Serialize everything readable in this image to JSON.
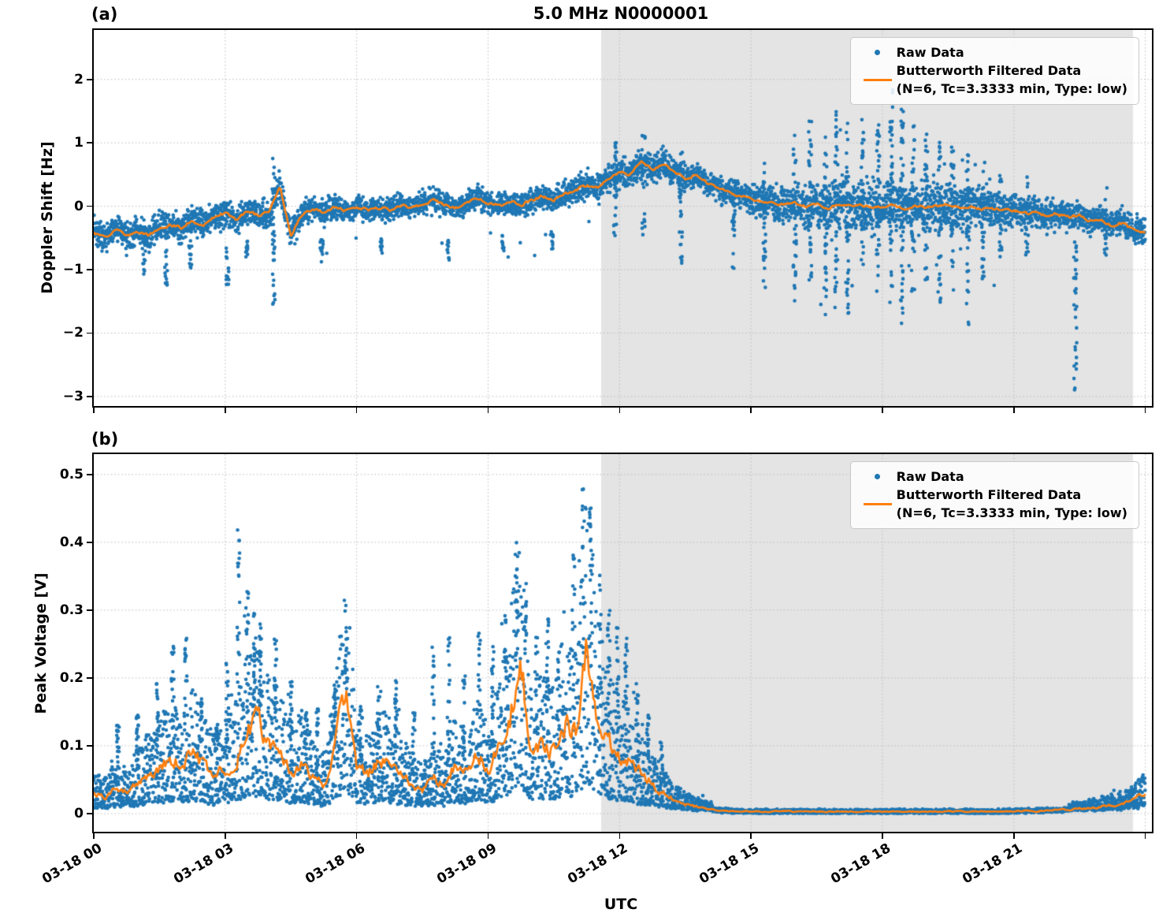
{
  "title": "5.0 MHz N0000001",
  "xlabel": "UTC",
  "legend": {
    "raw_label": "Raw Data",
    "filtered_label_line1": "Butterworth Filtered Data",
    "filtered_label_line2": "(N=6, Tc=3.3333 min, Type: low)"
  },
  "colors": {
    "raw": "#1f77b4",
    "filtered": "#ff7f0e",
    "shade": "#e4e4e4",
    "grid": "#bdbdbd",
    "spine": "#000000"
  },
  "chart_data": [
    {
      "type": "scatter",
      "panel_tag": "(a)",
      "ylabel": "Doppler Shift [Hz]",
      "xlabel": "UTC",
      "x_unit": "hours since 03-18 00:00 UTC",
      "xlim": [
        0,
        24.15
      ],
      "ylim": [
        -3.15,
        2.78
      ],
      "xtick_values": [
        0,
        3,
        6,
        9,
        12,
        15,
        18,
        21,
        24
      ],
      "xtick_labels": [
        "03-18 00",
        "03-18 03",
        "03-18 06",
        "03-18 09",
        "03-18 12",
        "03-18 15",
        "03-18 18",
        "03-18 21",
        ""
      ],
      "ytick_values": [
        2,
        1,
        0,
        -1,
        -2,
        -3
      ],
      "grid": "dotted",
      "legend_position": "upper right",
      "shaded_region_hours": [
        11.58,
        23.72
      ],
      "series": {
        "filtered": {
          "name": "Butterworth Filtered Data (N=6, Tc=3.3333 min, Type: low)",
          "t_step_hours": 0.25,
          "values": [
            -0.42,
            -0.5,
            -0.36,
            -0.48,
            -0.4,
            -0.46,
            -0.34,
            -0.3,
            -0.34,
            -0.22,
            -0.28,
            -0.16,
            -0.12,
            -0.2,
            -0.08,
            -0.14,
            -0.1,
            0.3,
            -0.46,
            -0.14,
            -0.05,
            -0.1,
            -0.03,
            -0.07,
            0.0,
            -0.06,
            -0.02,
            -0.06,
            0.02,
            -0.03,
            0.04,
            0.1,
            0.04,
            -0.03,
            0.06,
            0.14,
            0.04,
            0.01,
            0.07,
            0.03,
            0.09,
            0.16,
            0.1,
            0.2,
            0.26,
            0.33,
            0.3,
            0.44,
            0.55,
            0.5,
            0.7,
            0.58,
            0.66,
            0.54,
            0.44,
            0.5,
            0.37,
            0.29,
            0.22,
            0.17,
            0.12,
            0.08,
            0.05,
            0.03,
            0.05,
            0.0,
            0.03,
            -0.03,
            0.05,
            0.0,
            0.02,
            -0.02,
            0.0,
            0.03,
            -0.05,
            0.02,
            -0.02,
            0.0,
            0.02,
            -0.03,
            0.0,
            -0.05,
            -0.02,
            -0.08,
            -0.05,
            -0.12,
            -0.08,
            -0.15,
            -0.12,
            -0.19,
            -0.14,
            -0.24,
            -0.19,
            -0.3,
            -0.26,
            -0.4,
            -0.38
          ]
        },
        "raw_band_halfwidth_hz": {
          "t_step_hours": 1,
          "values": [
            0.3,
            0.31,
            0.3,
            0.3,
            0.3,
            0.27,
            0.24,
            0.24,
            0.26,
            0.24,
            0.25,
            0.3,
            0.33,
            0.3,
            0.27,
            0.3,
            0.42,
            0.52,
            0.55,
            0.5,
            0.42,
            0.33,
            0.3,
            0.28,
            0.3
          ]
        },
        "raw_outlier_columns_t_lo_hi": [
          [
            1.15,
            -1.1,
            -0.55
          ],
          [
            1.65,
            -1.3,
            -0.65
          ],
          [
            2.2,
            -1.0,
            -0.5
          ],
          [
            3.05,
            -1.35,
            -0.6
          ],
          [
            3.5,
            -0.85,
            -0.5
          ],
          [
            4.1,
            -1.55,
            0.8
          ],
          [
            5.2,
            -0.95,
            -0.5
          ],
          [
            6.55,
            -0.75,
            -0.45
          ],
          [
            8.1,
            -0.85,
            -0.5
          ],
          [
            9.35,
            -0.7,
            -0.45
          ],
          [
            10.45,
            -0.7,
            -0.4
          ],
          [
            11.9,
            -0.6,
            1.05
          ],
          [
            12.55,
            -0.5,
            1.15
          ],
          [
            13.4,
            -0.9,
            0.9
          ],
          [
            14.6,
            -1.05,
            0.5
          ],
          [
            15.3,
            -1.3,
            0.7
          ],
          [
            16.0,
            -1.55,
            1.0
          ],
          [
            16.35,
            -1.2,
            1.45
          ],
          [
            16.7,
            -1.85,
            1.1
          ],
          [
            16.95,
            -1.6,
            1.5
          ],
          [
            17.2,
            -1.75,
            1.35
          ],
          [
            17.55,
            -1.3,
            1.55
          ],
          [
            17.9,
            -1.45,
            1.3
          ],
          [
            18.2,
            -1.6,
            1.9
          ],
          [
            18.45,
            -1.85,
            1.55
          ],
          [
            18.7,
            -1.35,
            1.45
          ],
          [
            19.0,
            -1.2,
            1.25
          ],
          [
            19.3,
            -1.55,
            1.05
          ],
          [
            19.6,
            -1.35,
            0.95
          ],
          [
            19.95,
            -1.95,
            0.85
          ],
          [
            20.3,
            -1.15,
            0.95
          ],
          [
            20.7,
            -0.95,
            0.65
          ],
          [
            21.3,
            -0.8,
            0.5
          ],
          [
            22.4,
            -2.95,
            -0.5
          ],
          [
            23.1,
            -0.9,
            0.3
          ]
        ],
        "night_outlier_window_hours": [
          15.6,
          20.6
        ]
      }
    },
    {
      "type": "scatter",
      "panel_tag": "(b)",
      "ylabel": "Peak Voltage [V]",
      "xlabel": "UTC",
      "x_unit": "hours since 03-18 00:00 UTC",
      "xlim": [
        0,
        24.15
      ],
      "ylim": [
        -0.0267,
        0.53
      ],
      "xtick_values": [
        0,
        3,
        6,
        9,
        12,
        15,
        18,
        21,
        24
      ],
      "xtick_labels": [
        "03-18 00",
        "03-18 03",
        "03-18 06",
        "03-18 09",
        "03-18 12",
        "03-18 15",
        "03-18 18",
        "03-18 21",
        ""
      ],
      "ytick_values": [
        0.5,
        0.4,
        0.3,
        0.2,
        0.1,
        0.0
      ],
      "grid": "dotted",
      "legend_position": "upper right",
      "shaded_region_hours": [
        11.58,
        23.72
      ],
      "series": {
        "filtered": {
          "name": "Butterworth Filtered Data (N=6, Tc=3.3333 min, Type: low)",
          "t_step_hours": 0.25,
          "values": [
            0.03,
            0.025,
            0.04,
            0.03,
            0.048,
            0.058,
            0.07,
            0.082,
            0.072,
            0.092,
            0.072,
            0.058,
            0.068,
            0.082,
            0.118,
            0.132,
            0.102,
            0.092,
            0.063,
            0.078,
            0.054,
            0.044,
            0.092,
            0.18,
            0.068,
            0.058,
            0.078,
            0.072,
            0.058,
            0.044,
            0.034,
            0.054,
            0.04,
            0.072,
            0.058,
            0.088,
            0.068,
            0.098,
            0.145,
            0.215,
            0.088,
            0.108,
            0.092,
            0.135,
            0.118,
            0.255,
            0.145,
            0.108,
            0.088,
            0.072,
            0.058,
            0.044,
            0.03,
            0.02,
            0.014,
            0.01,
            0.007,
            0.005,
            0.004,
            0.0035,
            0.003,
            0.003,
            0.003,
            0.003,
            0.003,
            0.003,
            0.003,
            0.003,
            0.003,
            0.003,
            0.003,
            0.003,
            0.003,
            0.003,
            0.003,
            0.003,
            0.003,
            0.003,
            0.003,
            0.003,
            0.003,
            0.003,
            0.003,
            0.003,
            0.0035,
            0.004,
            0.004,
            0.005,
            0.005,
            0.006,
            0.007,
            0.008,
            0.01,
            0.012,
            0.015,
            0.02,
            0.028
          ]
        },
        "raw_spike_columns_t_peak": [
          [
            0.55,
            0.13
          ],
          [
            1.0,
            0.15
          ],
          [
            1.45,
            0.2
          ],
          [
            1.8,
            0.25
          ],
          [
            2.1,
            0.26
          ],
          [
            2.45,
            0.17
          ],
          [
            2.8,
            0.15
          ],
          [
            3.05,
            0.23
          ],
          [
            3.3,
            0.43
          ],
          [
            3.5,
            0.33
          ],
          [
            3.65,
            0.3
          ],
          [
            3.8,
            0.28
          ],
          [
            4.15,
            0.27
          ],
          [
            4.5,
            0.2
          ],
          [
            4.85,
            0.15
          ],
          [
            5.1,
            0.17
          ],
          [
            5.5,
            0.19
          ],
          [
            5.75,
            0.27
          ],
          [
            6.1,
            0.16
          ],
          [
            6.5,
            0.19
          ],
          [
            6.9,
            0.2
          ],
          [
            7.3,
            0.15
          ],
          [
            7.75,
            0.25
          ],
          [
            8.1,
            0.26
          ],
          [
            8.45,
            0.21
          ],
          [
            8.8,
            0.3
          ],
          [
            9.1,
            0.25
          ],
          [
            9.4,
            0.31
          ],
          [
            9.65,
            0.4
          ],
          [
            9.85,
            0.36
          ],
          [
            10.1,
            0.28
          ],
          [
            10.35,
            0.3
          ],
          [
            10.6,
            0.26
          ],
          [
            10.95,
            0.44
          ],
          [
            11.15,
            0.5
          ],
          [
            11.35,
            0.47
          ],
          [
            11.55,
            0.37
          ],
          [
            11.75,
            0.3
          ],
          [
            11.95,
            0.28
          ],
          [
            12.15,
            0.26
          ],
          [
            12.4,
            0.2
          ],
          [
            12.65,
            0.15
          ],
          [
            12.95,
            0.11
          ]
        ],
        "night_raw_halfwidth_v": 0.004
      }
    }
  ]
}
